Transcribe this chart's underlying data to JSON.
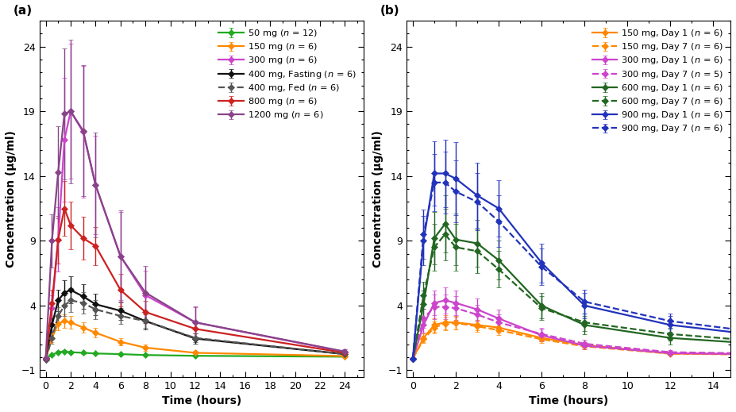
{
  "panel_a": {
    "series": [
      {
        "label": "50 mg (",
        "label_n": "n",
        "label_end": " = 12)",
        "color": "#22aa22",
        "linestyle": "-",
        "times": [
          0,
          0.5,
          1,
          1.5,
          2,
          3,
          4,
          6,
          8,
          12,
          24
        ],
        "means": [
          -0.1,
          0.2,
          0.4,
          0.45,
          0.4,
          0.35,
          0.3,
          0.25,
          0.18,
          0.12,
          0.05
        ],
        "errors": [
          0.05,
          0.07,
          0.09,
          0.09,
          0.09,
          0.07,
          0.06,
          0.05,
          0.04,
          0.03,
          0.02
        ]
      },
      {
        "label": "150 mg (",
        "label_n": "n",
        "label_end": " = 6)",
        "color": "#ff8800",
        "linestyle": "-",
        "times": [
          0,
          0.5,
          1,
          1.5,
          2,
          3,
          4,
          6,
          8,
          12,
          24
        ],
        "means": [
          -0.1,
          1.5,
          2.6,
          2.8,
          2.7,
          2.3,
          1.9,
          1.2,
          0.75,
          0.35,
          0.1
        ],
        "errors": [
          0.05,
          0.35,
          0.5,
          0.52,
          0.5,
          0.42,
          0.38,
          0.28,
          0.22,
          0.12,
          0.05
        ]
      },
      {
        "label": "300 mg (",
        "label_n": "n",
        "label_end": " = 6)",
        "color": "#cc44cc",
        "linestyle": "-",
        "times": [
          0,
          0.5,
          1,
          1.5,
          2,
          3,
          4,
          6,
          8,
          12,
          24
        ],
        "means": [
          -0.05,
          3.8,
          9.1,
          16.8,
          19.0,
          17.4,
          13.3,
          7.8,
          4.8,
          2.7,
          0.42
        ],
        "errors": [
          0.05,
          1.0,
          2.5,
          4.8,
          5.2,
          5.1,
          3.8,
          3.4,
          1.9,
          1.2,
          0.18
        ]
      },
      {
        "label": "400 mg, Fasting (",
        "label_n": "n",
        "label_end": " = 6)",
        "color": "#111111",
        "linestyle": "-",
        "times": [
          0,
          0.5,
          1,
          1.5,
          2,
          3,
          4,
          6,
          8,
          12,
          24
        ],
        "means": [
          -0.15,
          2.5,
          4.4,
          5.0,
          5.2,
          4.7,
          4.1,
          3.6,
          2.8,
          1.45,
          0.25
        ],
        "errors": [
          0.05,
          0.52,
          0.85,
          0.95,
          1.05,
          0.95,
          0.82,
          0.72,
          0.62,
          0.4,
          0.1
        ]
      },
      {
        "label": "400 mg, Fed (",
        "label_n": "n",
        "label_end": " = 6)",
        "color": "#555555",
        "linestyle": "--",
        "times": [
          0,
          0.5,
          1,
          1.5,
          2,
          3,
          4,
          6,
          8,
          12,
          24
        ],
        "means": [
          -0.15,
          1.5,
          3.2,
          4.0,
          4.4,
          4.2,
          3.7,
          3.2,
          2.8,
          1.5,
          0.25
        ],
        "errors": [
          0.05,
          0.42,
          0.65,
          0.82,
          0.92,
          0.82,
          0.72,
          0.62,
          0.52,
          0.32,
          0.1
        ]
      },
      {
        "label": "800 mg (",
        "label_n": "n",
        "label_end": " = 6)",
        "color": "#cc2222",
        "linestyle": "-",
        "times": [
          0,
          0.5,
          1,
          1.5,
          2,
          3,
          4,
          6,
          8,
          12,
          24
        ],
        "means": [
          -0.05,
          4.2,
          9.1,
          11.5,
          10.2,
          9.2,
          8.6,
          5.2,
          3.5,
          2.2,
          0.35
        ],
        "errors": [
          0.05,
          1.05,
          1.85,
          2.1,
          1.85,
          1.65,
          1.45,
          1.25,
          0.85,
          0.62,
          0.15
        ]
      },
      {
        "label": "1200 mg (",
        "label_n": "n",
        "label_end": " = 6)",
        "color": "#884488",
        "linestyle": "-",
        "times": [
          0,
          0.5,
          1,
          1.5,
          2,
          3,
          4,
          6,
          8,
          12,
          24
        ],
        "means": [
          -0.05,
          9.0,
          14.3,
          18.8,
          19.0,
          17.5,
          13.3,
          7.8,
          5.0,
          2.7,
          0.45
        ],
        "errors": [
          0.05,
          2.05,
          3.55,
          5.05,
          5.55,
          5.05,
          4.05,
          3.55,
          2.05,
          1.25,
          0.2
        ]
      }
    ],
    "ylabel": "Concentration (μg/ml)",
    "xlabel": "Time (hours)",
    "ylim": [
      -1.5,
      26
    ],
    "yticks": [
      -1,
      4,
      9,
      14,
      19,
      24
    ],
    "xticks": [
      0,
      2,
      4,
      6,
      8,
      10,
      12,
      14,
      16,
      18,
      20,
      22,
      24
    ],
    "xlim": [
      -0.5,
      25.5
    ],
    "panel_label": "(a)"
  },
  "panel_b": {
    "series": [
      {
        "label": "150 mg, Day 1 (",
        "label_n": "n",
        "label_end": " = 6)",
        "color": "#ff8800",
        "linestyle": "-",
        "times": [
          0,
          0.5,
          1,
          1.5,
          2,
          3,
          4,
          6,
          8,
          12,
          24
        ],
        "means": [
          -0.1,
          1.5,
          2.5,
          2.7,
          2.7,
          2.5,
          2.3,
          1.5,
          0.95,
          0.3,
          0.1
        ],
        "errors": [
          0.05,
          0.32,
          0.52,
          0.55,
          0.52,
          0.42,
          0.4,
          0.28,
          0.22,
          0.1,
          0.04
        ]
      },
      {
        "label": "150 mg, Day 7 (",
        "label_n": "n",
        "label_end": " = 6)",
        "color": "#ff8800",
        "linestyle": "--",
        "times": [
          0,
          0.5,
          1,
          1.5,
          2,
          3,
          4,
          6,
          8,
          12,
          24
        ],
        "means": [
          -0.1,
          1.4,
          2.3,
          2.6,
          2.65,
          2.4,
          2.1,
          1.4,
          0.85,
          0.28,
          0.08
        ],
        "errors": [
          0.05,
          0.28,
          0.45,
          0.52,
          0.5,
          0.4,
          0.38,
          0.28,
          0.2,
          0.09,
          0.04
        ]
      },
      {
        "label": "300 mg, Day 1 (",
        "label_n": "n",
        "label_end": " = 6)",
        "color": "#cc44cc",
        "linestyle": "-",
        "times": [
          0,
          0.5,
          1,
          1.5,
          2,
          3,
          4,
          6,
          8,
          12,
          24
        ],
        "means": [
          -0.1,
          2.5,
          4.2,
          4.4,
          4.2,
          3.7,
          3.0,
          1.7,
          0.9,
          0.32,
          0.08
        ],
        "errors": [
          0.05,
          0.62,
          0.95,
          1.0,
          0.95,
          0.85,
          0.7,
          0.48,
          0.28,
          0.12,
          0.04
        ]
      },
      {
        "label": "300 mg, Day 7 (",
        "label_n": "n",
        "label_end": " = 5)",
        "color": "#cc44cc",
        "linestyle": "--",
        "times": [
          0,
          0.5,
          1,
          1.5,
          2,
          3,
          4,
          6,
          8,
          12,
          24
        ],
        "means": [
          -0.1,
          3.0,
          3.9,
          3.9,
          3.8,
          3.3,
          2.7,
          1.8,
          1.05,
          0.4,
          0.1
        ],
        "errors": [
          0.05,
          0.72,
          0.95,
          0.95,
          0.9,
          0.78,
          0.65,
          0.48,
          0.3,
          0.14,
          0.04
        ]
      },
      {
        "label": "600 mg, Day 1 (",
        "label_n": "n",
        "label_end": " = 6)",
        "color": "#226622",
        "linestyle": "-",
        "times": [
          0,
          0.5,
          1,
          1.5,
          2,
          3,
          4,
          6,
          8,
          12,
          24
        ],
        "means": [
          -0.1,
          4.1,
          9.2,
          10.3,
          9.1,
          8.8,
          7.5,
          4.0,
          2.5,
          1.5,
          0.18
        ],
        "errors": [
          0.05,
          1.05,
          2.0,
          2.2,
          2.0,
          1.8,
          1.5,
          1.0,
          0.7,
          0.5,
          0.08
        ]
      },
      {
        "label": "600 mg, Day 7 (",
        "label_n": "n",
        "label_end": " = 6)",
        "color": "#226622",
        "linestyle": "--",
        "times": [
          0,
          0.5,
          1,
          1.5,
          2,
          3,
          4,
          6,
          8,
          12,
          24
        ],
        "means": [
          -0.1,
          4.8,
          8.5,
          9.5,
          8.5,
          8.2,
          6.8,
          3.8,
          2.7,
          1.8,
          0.22
        ],
        "errors": [
          0.05,
          1.05,
          1.8,
          2.0,
          1.8,
          1.7,
          1.4,
          0.9,
          0.68,
          0.5,
          0.08
        ]
      },
      {
        "label": "900 mg, Day 1 (",
        "label_n": "n",
        "label_end": " = 6)",
        "color": "#2233bb",
        "linestyle": "-",
        "times": [
          0,
          0.5,
          1,
          1.5,
          2,
          3,
          4,
          6,
          8,
          12,
          24
        ],
        "means": [
          -0.1,
          9.0,
          14.2,
          14.2,
          13.8,
          12.5,
          11.5,
          7.3,
          4.0,
          2.5,
          0.22
        ],
        "errors": [
          0.05,
          1.9,
          2.5,
          2.6,
          2.8,
          2.5,
          2.2,
          1.5,
          1.0,
          0.7,
          0.1
        ]
      },
      {
        "label": "900 mg, Day 7 (",
        "label_n": "n",
        "label_end": " = 6)",
        "color": "#2233bb",
        "linestyle": "--",
        "times": [
          0,
          0.5,
          1,
          1.5,
          2,
          3,
          4,
          6,
          8,
          12,
          24
        ],
        "means": [
          -0.1,
          9.5,
          13.5,
          13.5,
          12.8,
          12.0,
          10.5,
          7.0,
          4.3,
          2.8,
          0.28
        ],
        "errors": [
          0.05,
          1.9,
          2.2,
          2.4,
          2.4,
          2.2,
          2.0,
          1.4,
          0.9,
          0.6,
          0.1
        ]
      }
    ],
    "ylabel": "Concentration (μg/ml)",
    "xlabel": "Time (hours)",
    "ylim": [
      -1.5,
      26
    ],
    "yticks": [
      -1,
      4,
      9,
      14,
      19,
      24
    ],
    "xticks": [
      0,
      2,
      4,
      6,
      8,
      10,
      12,
      14
    ],
    "xlim": [
      -0.3,
      14.8
    ],
    "panel_label": "(b)"
  }
}
